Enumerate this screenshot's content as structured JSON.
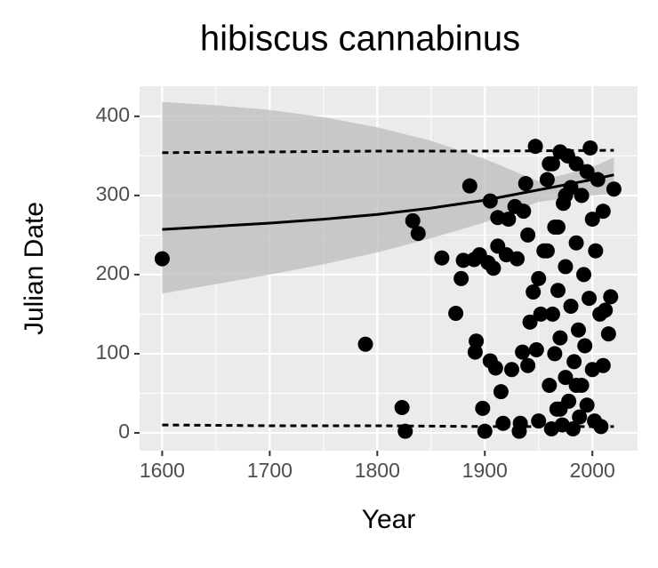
{
  "chart_data": {
    "type": "scatter",
    "title": "hibiscus cannabinus",
    "x_label": "Year",
    "y_label": "Julian Date",
    "xlim": [
      1579,
      2042
    ],
    "ylim": [
      -22.5,
      438
    ],
    "xticks": [
      1600,
      1700,
      1800,
      1900,
      2000
    ],
    "yticks": [
      0,
      100,
      200,
      300,
      400
    ],
    "xminor": [
      1650,
      1750,
      1850,
      1950
    ],
    "yminor": [
      50,
      150,
      250,
      350
    ],
    "grid": true,
    "color": "#000000",
    "points": {
      "x": [
        1600,
        1789,
        1823,
        1826,
        1833,
        1838,
        1860,
        1873,
        1878,
        1880,
        1886,
        1890,
        1891,
        1892,
        1895,
        1898,
        1900,
        1903,
        1905,
        1905,
        1908,
        1910,
        1912,
        1912,
        1915,
        1917,
        1920,
        1922,
        1925,
        1928,
        1930,
        1932,
        1933,
        1935,
        1936,
        1938,
        1940,
        1940,
        1942,
        1945,
        1947,
        1948,
        1950,
        1950,
        1952,
        1955,
        1958,
        1960,
        1962,
        1963,
        1965,
        1965,
        1967,
        1968,
        1970,
        1970,
        1972,
        1973,
        1975,
        1975,
        1977,
        1978,
        1980,
        1980,
        1982,
        1983,
        1985,
        1985,
        1987,
        1988,
        1990,
        1990,
        1992,
        1993,
        1995,
        1995,
        1997,
        1998,
        2000,
        2000,
        2002,
        2003,
        2005,
        2007,
        2008,
        2010,
        2010,
        2012,
        2015,
        2017,
        2020,
        1963,
        1968,
        1975,
        1958,
        1985,
        1960,
        1970
      ],
      "values": [
        220,
        112,
        32,
        2,
        268,
        252,
        221,
        151,
        195,
        218,
        312,
        219,
        102,
        116,
        225,
        31,
        2,
        215,
        293,
        91,
        208,
        82,
        272,
        236,
        52,
        12,
        225,
        270,
        80,
        286,
        220,
        2,
        12,
        102,
        280,
        315,
        85,
        250,
        140,
        178,
        362,
        105,
        15,
        195,
        150,
        230,
        320,
        60,
        5,
        340,
        100,
        260,
        30,
        180,
        355,
        120,
        10,
        290,
        70,
        210,
        350,
        40,
        160,
        310,
        5,
        90,
        240,
        340,
        130,
        20,
        300,
        60,
        200,
        110,
        330,
        35,
        170,
        360,
        80,
        270,
        15,
        230,
        320,
        150,
        8,
        85,
        280,
        155,
        125,
        172,
        308,
        150,
        260,
        300,
        230,
        60,
        340,
        30
      ]
    },
    "fit": {
      "color": "#000000",
      "band_color": "#bfbfbf",
      "x": [
        1600,
        1650,
        1700,
        1750,
        1800,
        1850,
        1900,
        1950,
        2000,
        2020
      ],
      "values": [
        257,
        261,
        265,
        270,
        276,
        284,
        294,
        307,
        320,
        326
      ],
      "lower": [
        176,
        188,
        200,
        213,
        228,
        246,
        266,
        292,
        300,
        302
      ],
      "upper": [
        418,
        414,
        408,
        399,
        386,
        369,
        346,
        318,
        336,
        348
      ]
    },
    "bounds": [
      {
        "x": [
          1600,
          1700,
          1800,
          1900,
          2020
        ],
        "values": [
          354,
          355,
          356,
          356,
          357
        ]
      },
      {
        "x": [
          1600,
          1700,
          1800,
          1900,
          2020
        ],
        "values": [
          10,
          9,
          9,
          8,
          8
        ]
      }
    ]
  }
}
